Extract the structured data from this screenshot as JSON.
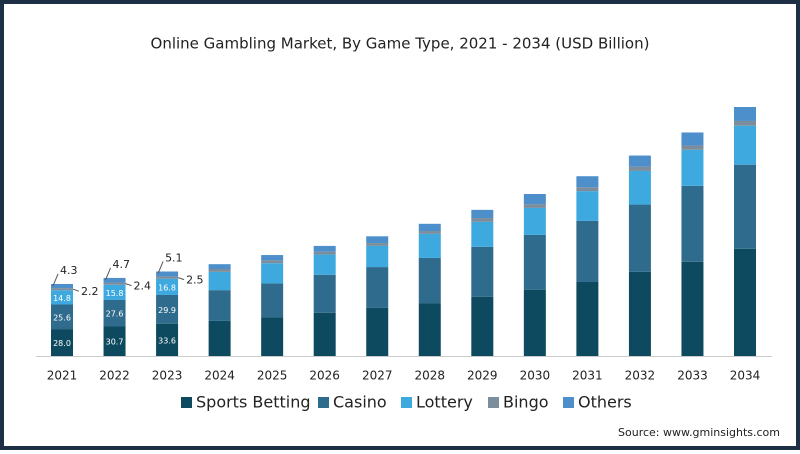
{
  "chart_data": {
    "type": "stacked-bar",
    "title": "Online Gambling Market, By Game Type, 2021 - 2034 (USD Billion)",
    "source": "Source: www.gminsights.com",
    "categories": [
      "2021",
      "2022",
      "2023",
      "2024",
      "2025",
      "2026",
      "2027",
      "2028",
      "2029",
      "2030",
      "2031",
      "2032",
      "2033",
      "2034"
    ],
    "series": [
      {
        "name": "Sports Betting",
        "color": "#0e4a5f",
        "values": [
          28.0,
          30.7,
          33.6,
          36.5,
          40,
          45,
          50,
          55,
          61.5,
          69,
          77,
          87.5,
          98,
          111.5
        ],
        "value_labels": [
          "28.0",
          "30.7",
          "33.6",
          null,
          null,
          null,
          null,
          null,
          null,
          null,
          null,
          null,
          null,
          null
        ]
      },
      {
        "name": "Casino",
        "color": "#2f6b8c",
        "values": [
          25.6,
          27.6,
          29.9,
          32,
          35.5,
          39.5,
          42.5,
          47,
          52,
          57,
          63.5,
          70,
          79,
          87.5
        ],
        "value_labels": [
          "25.6",
          "27.6",
          "29.9",
          null,
          null,
          null,
          null,
          null,
          null,
          null,
          null,
          null,
          null,
          null
        ]
      },
      {
        "name": "Lottery",
        "color": "#3ea9df",
        "values": [
          14.8,
          15.8,
          16.8,
          19,
          21,
          21,
          22,
          25,
          26,
          28,
          31,
          35,
          37.5,
          40.5
        ],
        "value_labels": [
          "14.8",
          "15.8",
          "16.8",
          null,
          null,
          null,
          null,
          null,
          null,
          null,
          null,
          null,
          null,
          null
        ]
      },
      {
        "name": "Bingo",
        "color": "#7c8e9c",
        "values": [
          2.2,
          2.4,
          2.5,
          3,
          3,
          3,
          3,
          3,
          4,
          4,
          4,
          4.5,
          4.5,
          5
        ],
        "value_labels": [
          "2.2",
          "2.4",
          "2.5",
          null,
          null,
          null,
          null,
          null,
          null,
          null,
          null,
          null,
          null,
          null
        ]
      },
      {
        "name": "Others",
        "color": "#4d8fca",
        "values": [
          4.3,
          4.7,
          5.1,
          5,
          5.5,
          6,
          7,
          7.5,
          8.5,
          10.5,
          11.5,
          11.5,
          13.5,
          14.5
        ],
        "value_labels": [
          "4.3",
          "4.7",
          "5.1",
          null,
          null,
          null,
          null,
          null,
          null,
          null,
          null,
          null,
          null,
          null
        ]
      }
    ]
  }
}
